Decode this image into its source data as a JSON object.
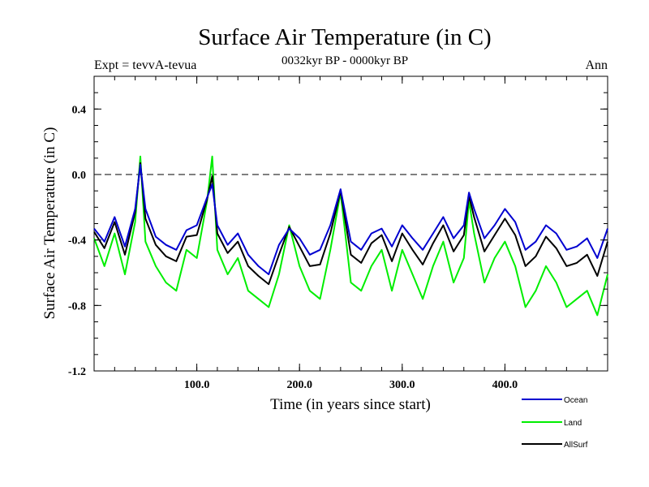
{
  "chart_data": {
    "type": "line",
    "title": "Surface Air Temperature (in C)",
    "subtitle": "0032kyr BP - 0000kyr BP",
    "expt_label": "Expt = tevvA-tevua",
    "season_label": "Ann",
    "xlabel": "Time (in years since start)",
    "ylabel": "Surface Air Temperature (in C)",
    "xlim": [
      0,
      500
    ],
    "ylim": [
      -1.2,
      0.6
    ],
    "xticks": [
      100,
      200,
      300,
      400
    ],
    "xtick_labels": [
      "100.0",
      "200.0",
      "300.0",
      "400.0"
    ],
    "yticks": [
      -1.2,
      -0.8,
      -0.4,
      0.0,
      0.4
    ],
    "ytick_labels": [
      "-1.2",
      "-0.8",
      "-0.4",
      "0.0",
      "0.4"
    ],
    "reference_line": 0.0,
    "reference_line_style": "dashed",
    "legend_placement": "bottom-right",
    "series": [
      {
        "name": "Ocean",
        "color": "#0000d0",
        "x": [
          0,
          10,
          20,
          30,
          40,
          45,
          50,
          60,
          70,
          80,
          90,
          100,
          110,
          115,
          120,
          130,
          140,
          150,
          160,
          170,
          180,
          190,
          200,
          210,
          220,
          230,
          240,
          250,
          260,
          270,
          280,
          290,
          300,
          310,
          320,
          330,
          340,
          350,
          360,
          365,
          370,
          380,
          390,
          400,
          410,
          420,
          430,
          440,
          450,
          460,
          470,
          480,
          490,
          500
        ],
        "y": [
          -0.33,
          -0.41,
          -0.26,
          -0.44,
          -0.21,
          0.06,
          -0.21,
          -0.38,
          -0.43,
          -0.46,
          -0.34,
          -0.31,
          -0.14,
          -0.06,
          -0.31,
          -0.43,
          -0.36,
          -0.49,
          -0.56,
          -0.61,
          -0.43,
          -0.33,
          -0.39,
          -0.49,
          -0.46,
          -0.31,
          -0.09,
          -0.41,
          -0.46,
          -0.36,
          -0.33,
          -0.44,
          -0.31,
          -0.39,
          -0.46,
          -0.36,
          -0.26,
          -0.39,
          -0.31,
          -0.11,
          -0.21,
          -0.39,
          -0.31,
          -0.21,
          -0.29,
          -0.46,
          -0.41,
          -0.31,
          -0.36,
          -0.46,
          -0.44,
          -0.39,
          -0.51,
          -0.33
        ]
      },
      {
        "name": "Land",
        "color": "#00ee00",
        "x": [
          0,
          10,
          20,
          30,
          40,
          45,
          50,
          60,
          70,
          80,
          90,
          100,
          110,
          115,
          120,
          130,
          140,
          150,
          160,
          170,
          180,
          190,
          200,
          210,
          220,
          230,
          240,
          250,
          260,
          270,
          280,
          290,
          300,
          310,
          320,
          330,
          340,
          350,
          360,
          365,
          370,
          380,
          390,
          400,
          410,
          420,
          430,
          440,
          450,
          460,
          470,
          480,
          490,
          500
        ],
        "y": [
          -0.39,
          -0.56,
          -0.36,
          -0.61,
          -0.29,
          0.11,
          -0.41,
          -0.56,
          -0.66,
          -0.71,
          -0.46,
          -0.51,
          -0.16,
          0.11,
          -0.46,
          -0.61,
          -0.51,
          -0.71,
          -0.76,
          -0.81,
          -0.61,
          -0.31,
          -0.56,
          -0.71,
          -0.76,
          -0.46,
          -0.11,
          -0.66,
          -0.71,
          -0.56,
          -0.46,
          -0.71,
          -0.46,
          -0.61,
          -0.76,
          -0.56,
          -0.41,
          -0.66,
          -0.51,
          -0.16,
          -0.36,
          -0.66,
          -0.51,
          -0.41,
          -0.56,
          -0.81,
          -0.71,
          -0.56,
          -0.66,
          -0.81,
          -0.76,
          -0.71,
          -0.86,
          -0.61
        ]
      },
      {
        "name": "AllSurf",
        "color": "#000000",
        "x": [
          0,
          10,
          20,
          30,
          40,
          45,
          50,
          60,
          70,
          80,
          90,
          100,
          110,
          115,
          120,
          130,
          140,
          150,
          160,
          170,
          180,
          190,
          200,
          210,
          220,
          230,
          240,
          250,
          260,
          270,
          280,
          290,
          300,
          310,
          320,
          330,
          340,
          350,
          360,
          365,
          370,
          380,
          390,
          400,
          410,
          420,
          430,
          440,
          450,
          460,
          470,
          480,
          490,
          500
        ],
        "y": [
          -0.35,
          -0.45,
          -0.29,
          -0.49,
          -0.23,
          0.07,
          -0.27,
          -0.43,
          -0.5,
          -0.53,
          -0.38,
          -0.37,
          -0.15,
          -0.01,
          -0.36,
          -0.48,
          -0.41,
          -0.56,
          -0.62,
          -0.67,
          -0.49,
          -0.32,
          -0.44,
          -0.56,
          -0.55,
          -0.36,
          -0.1,
          -0.49,
          -0.54,
          -0.42,
          -0.37,
          -0.53,
          -0.36,
          -0.46,
          -0.55,
          -0.42,
          -0.31,
          -0.47,
          -0.37,
          -0.13,
          -0.26,
          -0.47,
          -0.37,
          -0.27,
          -0.37,
          -0.56,
          -0.5,
          -0.38,
          -0.45,
          -0.56,
          -0.54,
          -0.49,
          -0.62,
          -0.41
        ]
      }
    ]
  }
}
